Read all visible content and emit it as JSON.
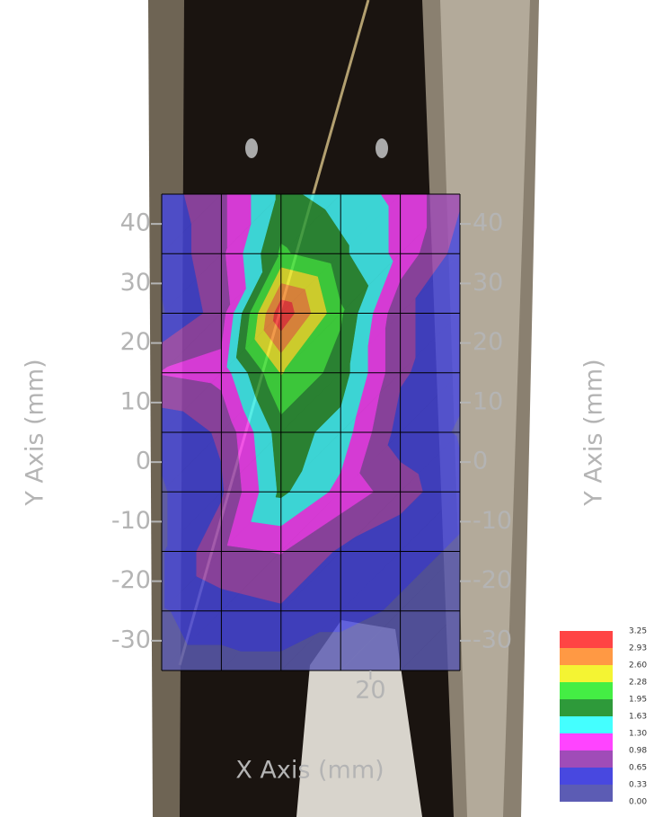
{
  "chart_data": {
    "type": "contour",
    "x_label": "X Axis (mm)",
    "y_label": "Y Axis (mm)",
    "x": [
      -15,
      -5,
      5,
      15,
      25,
      35
    ],
    "y": [
      -35,
      -25,
      -15,
      -5,
      5,
      15,
      25,
      35,
      45
    ],
    "z": [
      [
        0.2,
        0.2,
        0.2,
        0.2,
        0.2,
        0.2
      ],
      [
        0.3,
        0.5,
        0.6,
        0.4,
        0.3,
        0.3
      ],
      [
        0.3,
        0.9,
        1.0,
        0.6,
        0.4,
        0.3
      ],
      [
        0.3,
        0.6,
        1.7,
        1.2,
        0.8,
        0.4
      ],
      [
        0.4,
        0.7,
        1.8,
        1.5,
        0.5,
        0.3
      ],
      [
        1.0,
        1.1,
        2.3,
        1.8,
        0.7,
        0.4
      ],
      [
        0.3,
        0.8,
        3.2,
        2.0,
        0.7,
        0.5
      ],
      [
        0.4,
        0.9,
        2.0,
        1.7,
        1.2,
        0.5
      ],
      [
        0.5,
        0.9,
        1.7,
        1.5,
        1.2,
        0.7
      ]
    ],
    "xlim": [
      -15,
      35
    ],
    "ylim": [
      -35,
      45
    ],
    "xticks": [
      20
    ],
    "yticks": [
      -30,
      -20,
      -10,
      0,
      10,
      20,
      30,
      40
    ],
    "levels": [
      {
        "value": 0,
        "label": "0.00"
      },
      {
        "value": 0.33,
        "label": "0.33"
      },
      {
        "value": 0.65,
        "label": "0.65"
      },
      {
        "value": 0.98,
        "label": "0.98"
      },
      {
        "value": 1.3,
        "label": "1.30"
      },
      {
        "value": 1.63,
        "label": "1.63"
      },
      {
        "value": 1.95,
        "label": "1.95"
      },
      {
        "value": 2.28,
        "label": "2.28"
      },
      {
        "value": 2.6,
        "label": "2.60"
      },
      {
        "value": 2.93,
        "label": "2.93"
      },
      {
        "value": 3.25,
        "label": "3.25"
      }
    ],
    "colors": [
      "#5c5cb4",
      "#4848e0",
      "#a04cb8",
      "#ff44ff",
      "#44ffff",
      "#2e9a3a",
      "#44ee44",
      "#f4f433",
      "#ff9944",
      "#ff4444"
    ],
    "grid": true
  }
}
